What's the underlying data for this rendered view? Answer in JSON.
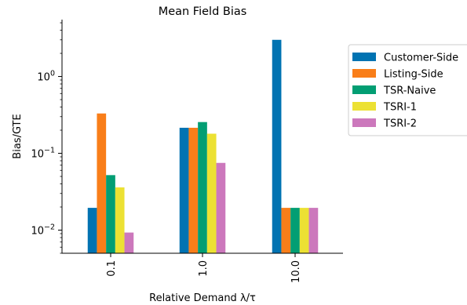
{
  "chart_data": {
    "type": "bar",
    "title": "Mean Field Bias",
    "xlabel": "Relative Demand λ/τ",
    "ylabel": "Bias/GTE",
    "yscale": "log",
    "ylim": [
      0.005,
      5.5
    ],
    "grid": false,
    "legend_position": "right",
    "categories": [
      "0.1",
      "1.0",
      "10.0"
    ],
    "yticks": [
      {
        "value": 0.01,
        "base": "10",
        "exp": "−2"
      },
      {
        "value": 0.1,
        "base": "10",
        "exp": "−1"
      },
      {
        "value": 1,
        "base": "10",
        "exp": "0"
      }
    ],
    "series": [
      {
        "name": "Customer-Side",
        "color": "#0173b2",
        "values": [
          0.0195,
          0.215,
          3.0
        ]
      },
      {
        "name": "Listing-Side",
        "color": "#f97e19",
        "values": [
          0.33,
          0.215,
          0.0195
        ]
      },
      {
        "name": "TSR-Naive",
        "color": "#029e73",
        "values": [
          0.052,
          0.255,
          0.0195
        ]
      },
      {
        "name": "TSRI-1",
        "color": "#ece133",
        "values": [
          0.036,
          0.18,
          0.0195
        ]
      },
      {
        "name": "TSRI-2",
        "color": "#cc78bc",
        "values": [
          0.0093,
          0.075,
          0.0195
        ]
      }
    ]
  }
}
